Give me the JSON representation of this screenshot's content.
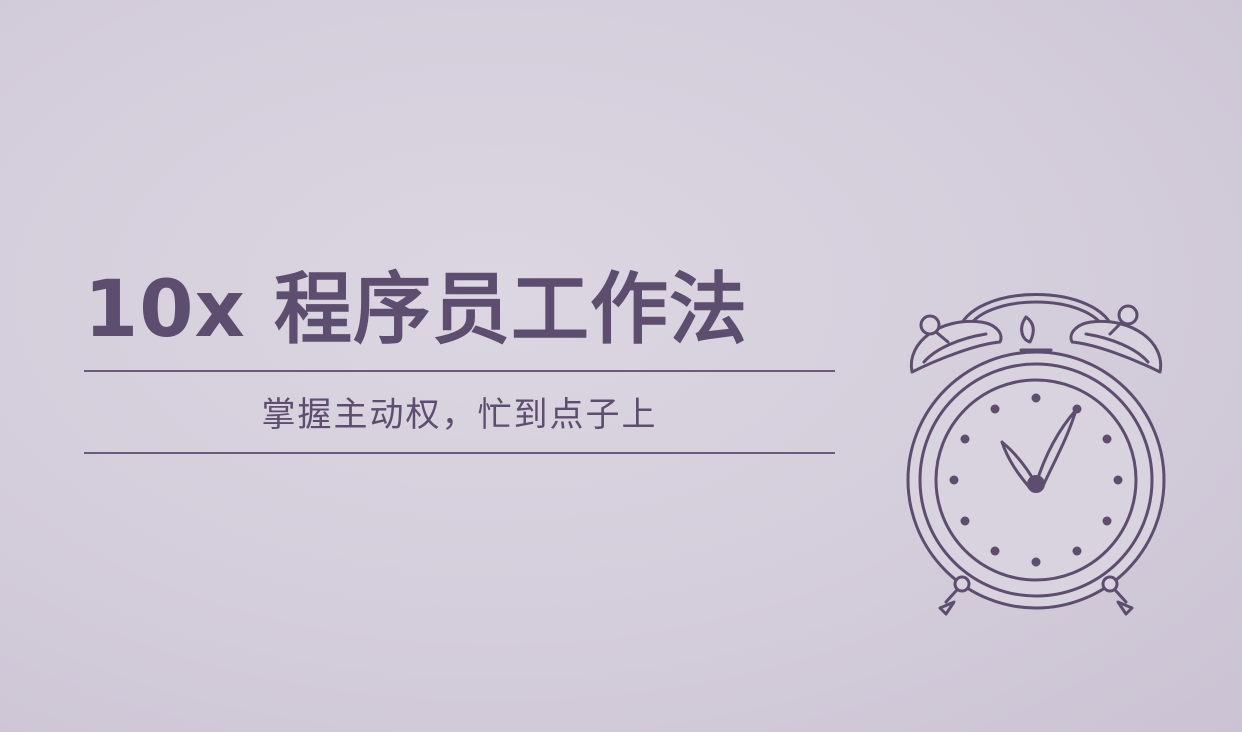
{
  "banner": {
    "title": "10x 程序员工作法",
    "subtitle": "掌握主动权，忙到点子上"
  },
  "illustration": {
    "icon": "alarm-clock-icon"
  },
  "colors": {
    "background": "#d6d0dc",
    "ink": "#5d4e6f"
  }
}
